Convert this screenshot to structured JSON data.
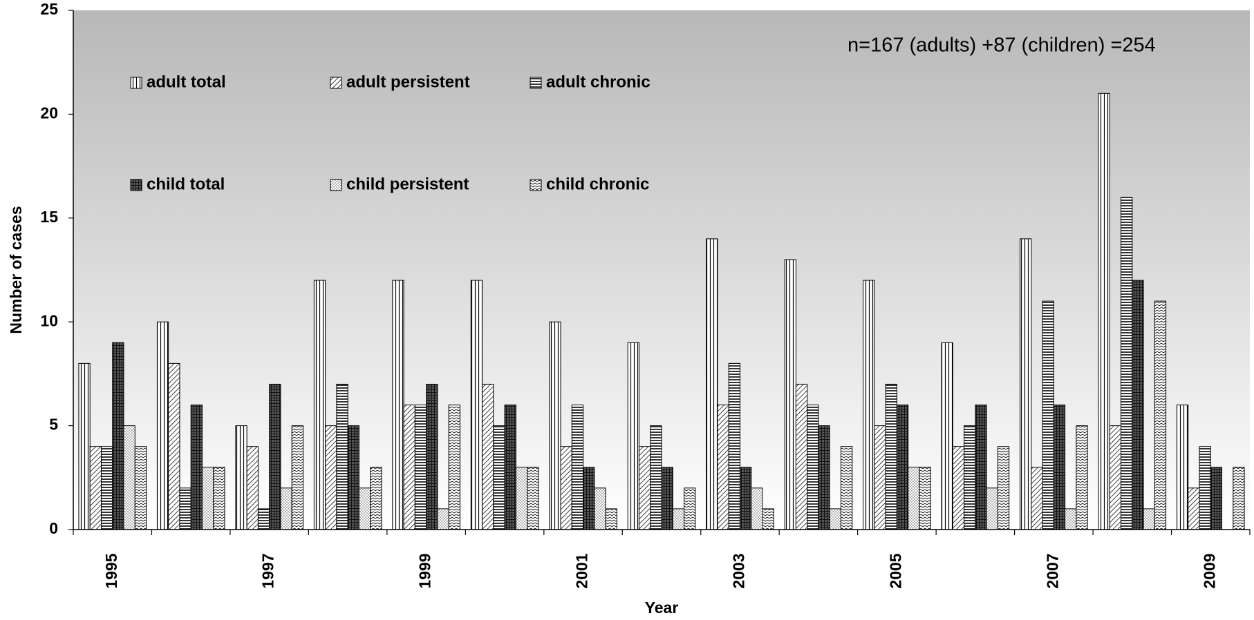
{
  "chart_data": {
    "type": "bar",
    "annotation": "n=167 (adults) +87 (children) =254",
    "x_label": "Year",
    "y_label": "Number of cases",
    "categories": [
      "1995",
      null,
      "1997",
      null,
      "1999",
      null,
      "2001",
      null,
      "2003",
      null,
      "2005",
      null,
      "2007",
      null,
      "2009"
    ],
    "series": [
      {
        "name": "adult total",
        "pattern": "vertical",
        "values": [
          8,
          10,
          5,
          12,
          12,
          12,
          10,
          9,
          14,
          13,
          12,
          9,
          14,
          21,
          6
        ]
      },
      {
        "name": "adult persistent",
        "pattern": "diagonal",
        "values": [
          4,
          8,
          4,
          5,
          6,
          7,
          4,
          4,
          6,
          7,
          5,
          4,
          3,
          5,
          2
        ]
      },
      {
        "name": "adult chronic",
        "pattern": "horizontal",
        "values": [
          4,
          2,
          1,
          7,
          6,
          5,
          6,
          5,
          8,
          6,
          7,
          5,
          11,
          16,
          4
        ]
      },
      {
        "name": "child total",
        "pattern": "grid",
        "values": [
          9,
          6,
          7,
          5,
          7,
          6,
          3,
          3,
          3,
          5,
          6,
          6,
          6,
          12,
          3
        ]
      },
      {
        "name": "child persistent",
        "pattern": "dots",
        "values": [
          5,
          3,
          2,
          2,
          1,
          3,
          2,
          1,
          2,
          1,
          3,
          2,
          1,
          1,
          0
        ]
      },
      {
        "name": "child chronic",
        "pattern": "zigzag",
        "values": [
          4,
          3,
          5,
          3,
          6,
          3,
          1,
          2,
          1,
          4,
          3,
          4,
          5,
          11,
          3
        ]
      }
    ],
    "ylim": [
      0,
      25
    ],
    "yticks": [
      0,
      5,
      10,
      15,
      20,
      25
    ]
  }
}
